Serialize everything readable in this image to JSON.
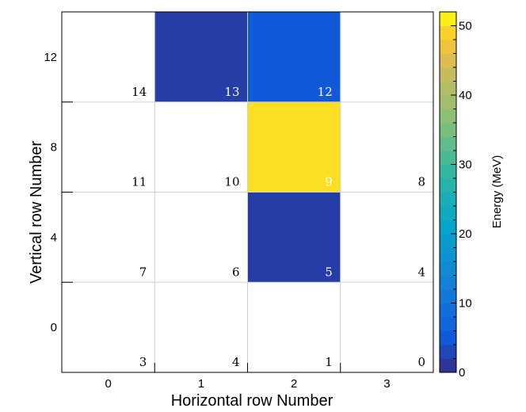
{
  "chart_data": {
    "type": "heatmap",
    "title": "",
    "xlabel": "Horizontal row Number",
    "ylabel": "Vertical row Number",
    "x_ticks": [
      "0",
      "1",
      "2",
      "3"
    ],
    "y_ticks": [
      "0",
      "4",
      "8",
      "12"
    ],
    "xlim": [
      -0.5,
      3.5
    ],
    "ylim": [
      -2,
      14
    ],
    "grid": true,
    "colorbar": {
      "label": "Energy (MeV)",
      "range": [
        0,
        52
      ],
      "ticks": [
        "0",
        "10",
        "20",
        "30",
        "40",
        "50"
      ],
      "tick_values": [
        0,
        10,
        20,
        30,
        40,
        50
      ]
    },
    "cells": [
      {
        "label": "14",
        "x": 0,
        "y": 12,
        "value": 0
      },
      {
        "label": "13",
        "x": 1,
        "y": 12,
        "value": 2
      },
      {
        "label": "12",
        "x": 2,
        "y": 12,
        "value": 5
      },
      {
        "label": "11",
        "x": 0,
        "y": 8,
        "value": 0
      },
      {
        "label": "10",
        "x": 1,
        "y": 8,
        "value": 0
      },
      {
        "label": "9",
        "x": 2,
        "y": 8,
        "value": 50
      },
      {
        "label": "8",
        "x": 3,
        "y": 8,
        "value": 0
      },
      {
        "label": "7",
        "x": 0,
        "y": 4,
        "value": 0
      },
      {
        "label": "6",
        "x": 1,
        "y": 4,
        "value": 0
      },
      {
        "label": "5",
        "x": 2,
        "y": 4,
        "value": 2
      },
      {
        "label": "4",
        "x": 3,
        "y": 4,
        "value": 0
      },
      {
        "label": "3",
        "x": 0,
        "y": 0,
        "value": 0
      },
      {
        "label": "4",
        "x": 1,
        "y": 0,
        "value": 0
      },
      {
        "label": "1",
        "x": 2,
        "y": 0,
        "value": 0
      },
      {
        "label": "0",
        "x": 3,
        "y": 0,
        "value": 0
      }
    ]
  }
}
